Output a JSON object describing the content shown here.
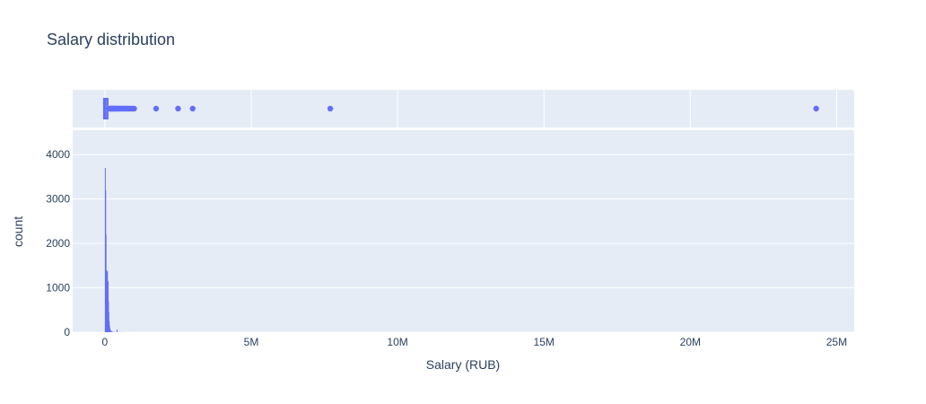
{
  "chart_data": {
    "type": "histogram",
    "title": "Salary distribution",
    "xlabel": "Salary (RUB)",
    "ylabel": "count",
    "colors": {
      "marker": "#636efa",
      "plot_bg": "#e5ecf6",
      "grid": "#ffffff",
      "text": "#2a3f5f"
    },
    "x_axis": {
      "range": [
        -1100000,
        25600000
      ],
      "tick_values": [
        0,
        5000000,
        10000000,
        15000000,
        20000000,
        25000000
      ],
      "tick_labels": [
        "0",
        "5M",
        "10M",
        "15M",
        "20M",
        "25M"
      ]
    },
    "histogram": {
      "y_range": [
        0,
        4550
      ],
      "y_tick_values": [
        0,
        1000,
        2000,
        3000,
        4000
      ],
      "y_tick_labels": [
        "0",
        "1000",
        "2000",
        "3000",
        "4000"
      ],
      "bins": [
        {
          "x": 0,
          "count": 3700
        },
        {
          "x": 12000,
          "count": 3200
        },
        {
          "x": 24000,
          "count": 2200
        },
        {
          "x": 36000,
          "count": 1400
        },
        {
          "x": 48000,
          "count": 1150
        },
        {
          "x": 60000,
          "count": 1350
        },
        {
          "x": 72000,
          "count": 1380
        },
        {
          "x": 84000,
          "count": 900
        },
        {
          "x": 96000,
          "count": 1150
        },
        {
          "x": 108000,
          "count": 700
        },
        {
          "x": 120000,
          "count": 450
        },
        {
          "x": 132000,
          "count": 250
        },
        {
          "x": 144000,
          "count": 150
        },
        {
          "x": 156000,
          "count": 90
        },
        {
          "x": 168000,
          "count": 60
        },
        {
          "x": 180000,
          "count": 40
        },
        {
          "x": 204000,
          "count": 25
        },
        {
          "x": 240000,
          "count": 15
        },
        {
          "x": 300000,
          "count": 8
        },
        {
          "x": 400000,
          "count": 60
        },
        {
          "x": 500000,
          "count": 4
        },
        {
          "x": 600000,
          "count": 3
        },
        {
          "x": 800000,
          "count": 2
        }
      ],
      "bin_width": 12000
    },
    "boxplot": {
      "box": {
        "q1": 0,
        "median": 20000,
        "q3": 60000,
        "lower_fence": -10000,
        "upper_fence": 150000
      },
      "outliers": [
        160000,
        180000,
        200000,
        220000,
        240000,
        260000,
        280000,
        300000,
        320000,
        350000,
        380000,
        400000,
        430000,
        460000,
        500000,
        530000,
        560000,
        600000,
        640000,
        680000,
        720000,
        760000,
        800000,
        850000,
        900000,
        950000,
        1000000,
        1750000,
        2500000,
        3000000,
        7700000,
        24300000
      ]
    }
  }
}
